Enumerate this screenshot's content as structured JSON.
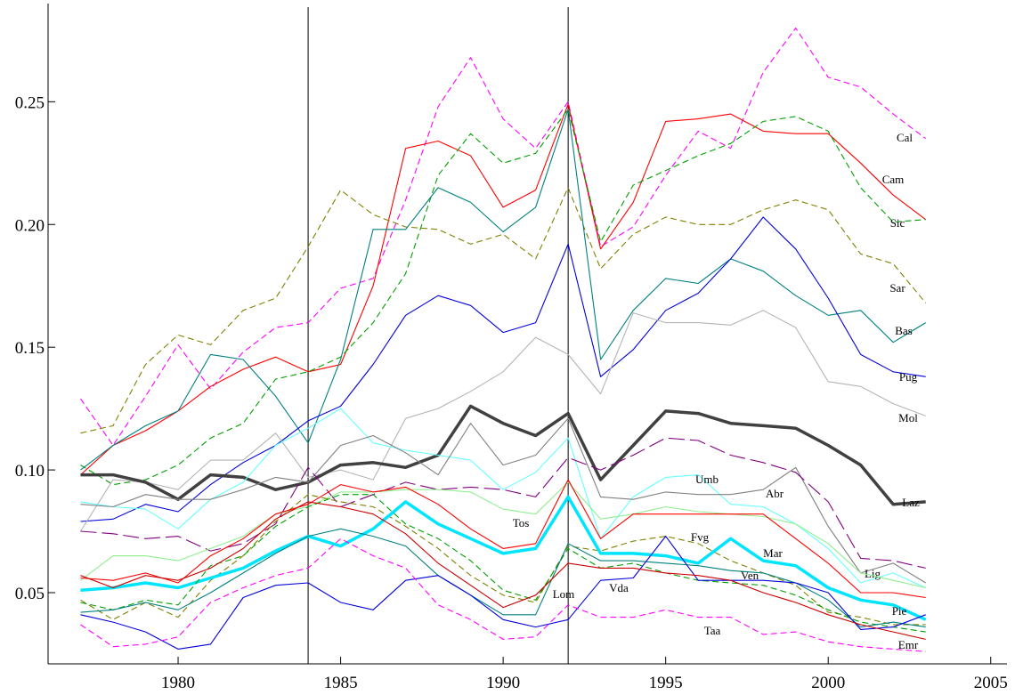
{
  "chart_data": {
    "type": "line",
    "x": [
      1977,
      1978,
      1979,
      1980,
      1981,
      1982,
      1983,
      1984,
      1985,
      1986,
      1987,
      1988,
      1989,
      1990,
      1991,
      1992,
      1993,
      1994,
      1995,
      1996,
      1997,
      1998,
      1999,
      2000,
      2001,
      2002,
      2003
    ],
    "xlim": [
      1976,
      2005.5
    ],
    "xticks": [
      1980,
      1985,
      1990,
      1995,
      2000,
      2005
    ],
    "ylim": [
      0.021,
      0.29
    ],
    "yticks": [
      0.05,
      {
        "value": 0.1,
        "label": "0.10"
      },
      0.15,
      {
        "value": 0.2,
        "label": "0.20"
      },
      0.25
    ],
    "vlines": [
      1984,
      1992
    ],
    "series": [
      {
        "name": "Cal",
        "color": "#ff00ff",
        "style": "dashed",
        "values": [
          0.129,
          0.11,
          0.13,
          0.151,
          0.133,
          0.148,
          0.158,
          0.16,
          0.174,
          0.178,
          0.21,
          0.248,
          0.268,
          0.243,
          0.231,
          0.25,
          0.191,
          0.199,
          0.22,
          0.238,
          0.231,
          0.262,
          0.28,
          0.26,
          0.256,
          0.245,
          0.235
        ]
      },
      {
        "name": "Cam",
        "color": "#ff0000",
        "style": "solid",
        "values": [
          0.098,
          0.11,
          0.116,
          0.124,
          0.134,
          0.141,
          0.146,
          0.14,
          0.143,
          0.175,
          0.231,
          0.234,
          0.228,
          0.207,
          0.214,
          0.249,
          0.19,
          0.209,
          0.242,
          0.243,
          0.245,
          0.238,
          0.237,
          0.237,
          0.225,
          0.212,
          0.202
        ]
      },
      {
        "name": "Sic",
        "color": "#00a000",
        "style": "dashed",
        "values": [
          0.102,
          0.094,
          0.096,
          0.102,
          0.113,
          0.119,
          0.137,
          0.14,
          0.146,
          0.16,
          0.18,
          0.22,
          0.237,
          0.225,
          0.229,
          0.247,
          0.193,
          0.216,
          0.222,
          0.228,
          0.233,
          0.242,
          0.244,
          0.238,
          0.215,
          0.201,
          0.202
        ]
      },
      {
        "name": "Sar",
        "color": "#808000",
        "style": "dashed",
        "values": [
          0.115,
          0.118,
          0.143,
          0.155,
          0.151,
          0.165,
          0.17,
          0.191,
          0.214,
          0.204,
          0.199,
          0.198,
          0.192,
          0.196,
          0.186,
          0.215,
          0.182,
          0.196,
          0.203,
          0.2,
          0.2,
          0.206,
          0.21,
          0.206,
          0.188,
          0.184,
          0.168
        ]
      },
      {
        "name": "Bas",
        "color": "#008080",
        "style": "solid",
        "values": [
          0.1,
          0.11,
          0.118,
          0.124,
          0.147,
          0.145,
          0.13,
          0.111,
          0.145,
          0.198,
          0.198,
          0.215,
          0.209,
          0.197,
          0.207,
          0.247,
          0.145,
          0.165,
          0.178,
          0.176,
          0.186,
          0.181,
          0.171,
          0.163,
          0.165,
          0.152,
          0.16
        ]
      },
      {
        "name": "Pug",
        "color": "#0000dd",
        "style": "solid",
        "values": [
          0.079,
          0.08,
          0.086,
          0.083,
          0.094,
          0.103,
          0.11,
          0.12,
          0.126,
          0.143,
          0.163,
          0.171,
          0.167,
          0.156,
          0.16,
          0.192,
          0.138,
          0.149,
          0.165,
          0.172,
          0.186,
          0.203,
          0.19,
          0.17,
          0.147,
          0.14,
          0.138
        ]
      },
      {
        "name": "Mol",
        "color": "#b4b4b4",
        "style": "solid",
        "values": [
          0.075,
          0.096,
          0.095,
          0.092,
          0.104,
          0.104,
          0.115,
          0.097,
          0.1,
          0.096,
          0.121,
          0.125,
          0.132,
          0.14,
          0.154,
          0.147,
          0.131,
          0.164,
          0.16,
          0.16,
          0.159,
          0.165,
          0.158,
          0.136,
          0.134,
          0.127,
          0.122
        ]
      },
      {
        "name": "Laz",
        "color": "#404040",
        "style": "thick",
        "values": [
          0.098,
          0.098,
          0.095,
          0.088,
          0.098,
          0.097,
          0.092,
          0.095,
          0.102,
          0.103,
          0.101,
          0.106,
          0.126,
          0.119,
          0.114,
          0.123,
          0.096,
          0.11,
          0.124,
          0.123,
          0.119,
          0.118,
          0.117,
          0.11,
          0.102,
          0.086,
          0.087
        ]
      },
      {
        "name": "Umb",
        "color": "#66ffff",
        "style": "solid",
        "values": [
          0.087,
          0.085,
          0.084,
          0.076,
          0.088,
          0.095,
          0.11,
          0.117,
          0.125,
          0.111,
          0.108,
          0.106,
          0.104,
          0.092,
          0.099,
          0.113,
          0.072,
          0.089,
          0.097,
          0.098,
          0.086,
          0.085,
          0.078,
          0.068,
          0.054,
          0.058,
          0.052
        ]
      },
      {
        "name": "Abr",
        "color": "#808080",
        "style": "solid",
        "values": [
          0.086,
          0.085,
          0.09,
          0.088,
          0.088,
          0.092,
          0.097,
          0.095,
          0.11,
          0.114,
          0.107,
          0.098,
          0.119,
          0.102,
          0.106,
          0.121,
          0.089,
          0.088,
          0.091,
          0.09,
          0.09,
          0.092,
          0.101,
          0.077,
          0.058,
          0.062,
          0.054
        ]
      },
      {
        "name": "Lig",
        "color": "#800080",
        "style": "longdash",
        "values": [
          0.075,
          0.074,
          0.072,
          0.073,
          0.067,
          0.07,
          0.078,
          0.101,
          0.085,
          0.09,
          0.095,
          0.092,
          0.093,
          0.092,
          0.089,
          0.105,
          0.1,
          0.106,
          0.113,
          0.112,
          0.106,
          0.103,
          0.099,
          0.087,
          0.064,
          0.063,
          0.06
        ]
      },
      {
        "name": "Tos",
        "color": "#90ee90",
        "style": "solid",
        "values": [
          0.055,
          0.065,
          0.065,
          0.063,
          0.068,
          0.073,
          0.082,
          0.085,
          0.091,
          0.091,
          0.092,
          0.092,
          0.091,
          0.084,
          0.082,
          0.095,
          0.08,
          0.082,
          0.085,
          0.083,
          0.082,
          0.081,
          0.078,
          0.07,
          0.058,
          0.055,
          0.052
        ]
      },
      {
        "name": "Fvg",
        "color": "#808000",
        "style": "dashed",
        "values": [
          0.047,
          0.039,
          0.046,
          0.04,
          0.055,
          0.065,
          0.079,
          0.09,
          0.087,
          0.085,
          0.077,
          0.068,
          0.057,
          0.049,
          0.046,
          0.069,
          0.067,
          0.071,
          0.073,
          0.07,
          0.063,
          0.058,
          0.053,
          0.042,
          0.04,
          0.037,
          0.037
        ]
      },
      {
        "name": "Mar",
        "color": "#00e5ff",
        "style": "thick",
        "values": [
          0.051,
          0.052,
          0.054,
          0.052,
          0.056,
          0.06,
          0.067,
          0.073,
          0.069,
          0.076,
          0.087,
          0.078,
          0.072,
          0.066,
          0.068,
          0.089,
          0.066,
          0.066,
          0.065,
          0.062,
          0.072,
          0.063,
          0.061,
          0.052,
          0.047,
          0.045,
          0.039
        ]
      },
      {
        "name": "Pie",
        "color": "#ff0000",
        "style": "solid",
        "values": [
          0.056,
          0.055,
          0.058,
          0.054,
          0.065,
          0.072,
          0.082,
          0.086,
          0.094,
          0.091,
          0.093,
          0.086,
          0.076,
          0.068,
          0.07,
          0.096,
          0.072,
          0.082,
          0.082,
          0.082,
          0.082,
          0.082,
          0.072,
          0.062,
          0.05,
          0.05,
          0.048
        ]
      },
      {
        "name": "Ven",
        "color": "#00a000",
        "style": "dashed",
        "values": [
          0.046,
          0.043,
          0.047,
          0.045,
          0.061,
          0.065,
          0.077,
          0.085,
          0.09,
          0.09,
          0.078,
          0.072,
          0.063,
          0.051,
          0.047,
          0.068,
          0.06,
          0.062,
          0.058,
          0.055,
          0.054,
          0.053,
          0.049,
          0.043,
          0.038,
          0.036,
          0.034
        ]
      },
      {
        "name": "Lom",
        "color": "#008080",
        "style": "solid",
        "values": [
          0.042,
          0.043,
          0.046,
          0.043,
          0.05,
          0.058,
          0.066,
          0.073,
          0.076,
          0.073,
          0.069,
          0.057,
          0.049,
          0.041,
          0.041,
          0.07,
          0.063,
          0.063,
          0.062,
          0.061,
          0.059,
          0.058,
          0.054,
          0.047,
          0.036,
          0.038,
          0.036
        ]
      },
      {
        "name": "Vda",
        "color": "#0000dd",
        "style": "solid",
        "values": [
          0.041,
          0.038,
          0.034,
          0.027,
          0.029,
          0.048,
          0.053,
          0.054,
          0.046,
          0.043,
          0.055,
          0.057,
          0.049,
          0.039,
          0.036,
          0.039,
          0.055,
          0.056,
          0.073,
          0.055,
          0.055,
          0.055,
          0.054,
          0.05,
          0.035,
          0.036,
          0.041
        ]
      },
      {
        "name": "Emr",
        "color": "#cc0000",
        "style": "solid",
        "values": [
          0.057,
          0.052,
          0.057,
          0.055,
          0.06,
          0.068,
          0.08,
          0.087,
          0.085,
          0.082,
          0.074,
          0.062,
          0.053,
          0.044,
          0.049,
          0.062,
          0.06,
          0.06,
          0.058,
          0.057,
          0.055,
          0.05,
          0.046,
          0.041,
          0.037,
          0.034,
          0.031
        ]
      },
      {
        "name": "Taa",
        "color": "#ff00ff",
        "style": "dashed",
        "values": [
          0.037,
          0.028,
          0.029,
          0.032,
          0.046,
          0.052,
          0.057,
          0.06,
          0.072,
          0.065,
          0.06,
          0.045,
          0.039,
          0.031,
          0.032,
          0.045,
          0.04,
          0.04,
          0.043,
          0.04,
          0.04,
          0.033,
          0.034,
          0.03,
          0.028,
          0.027,
          0.026
        ]
      }
    ]
  }
}
